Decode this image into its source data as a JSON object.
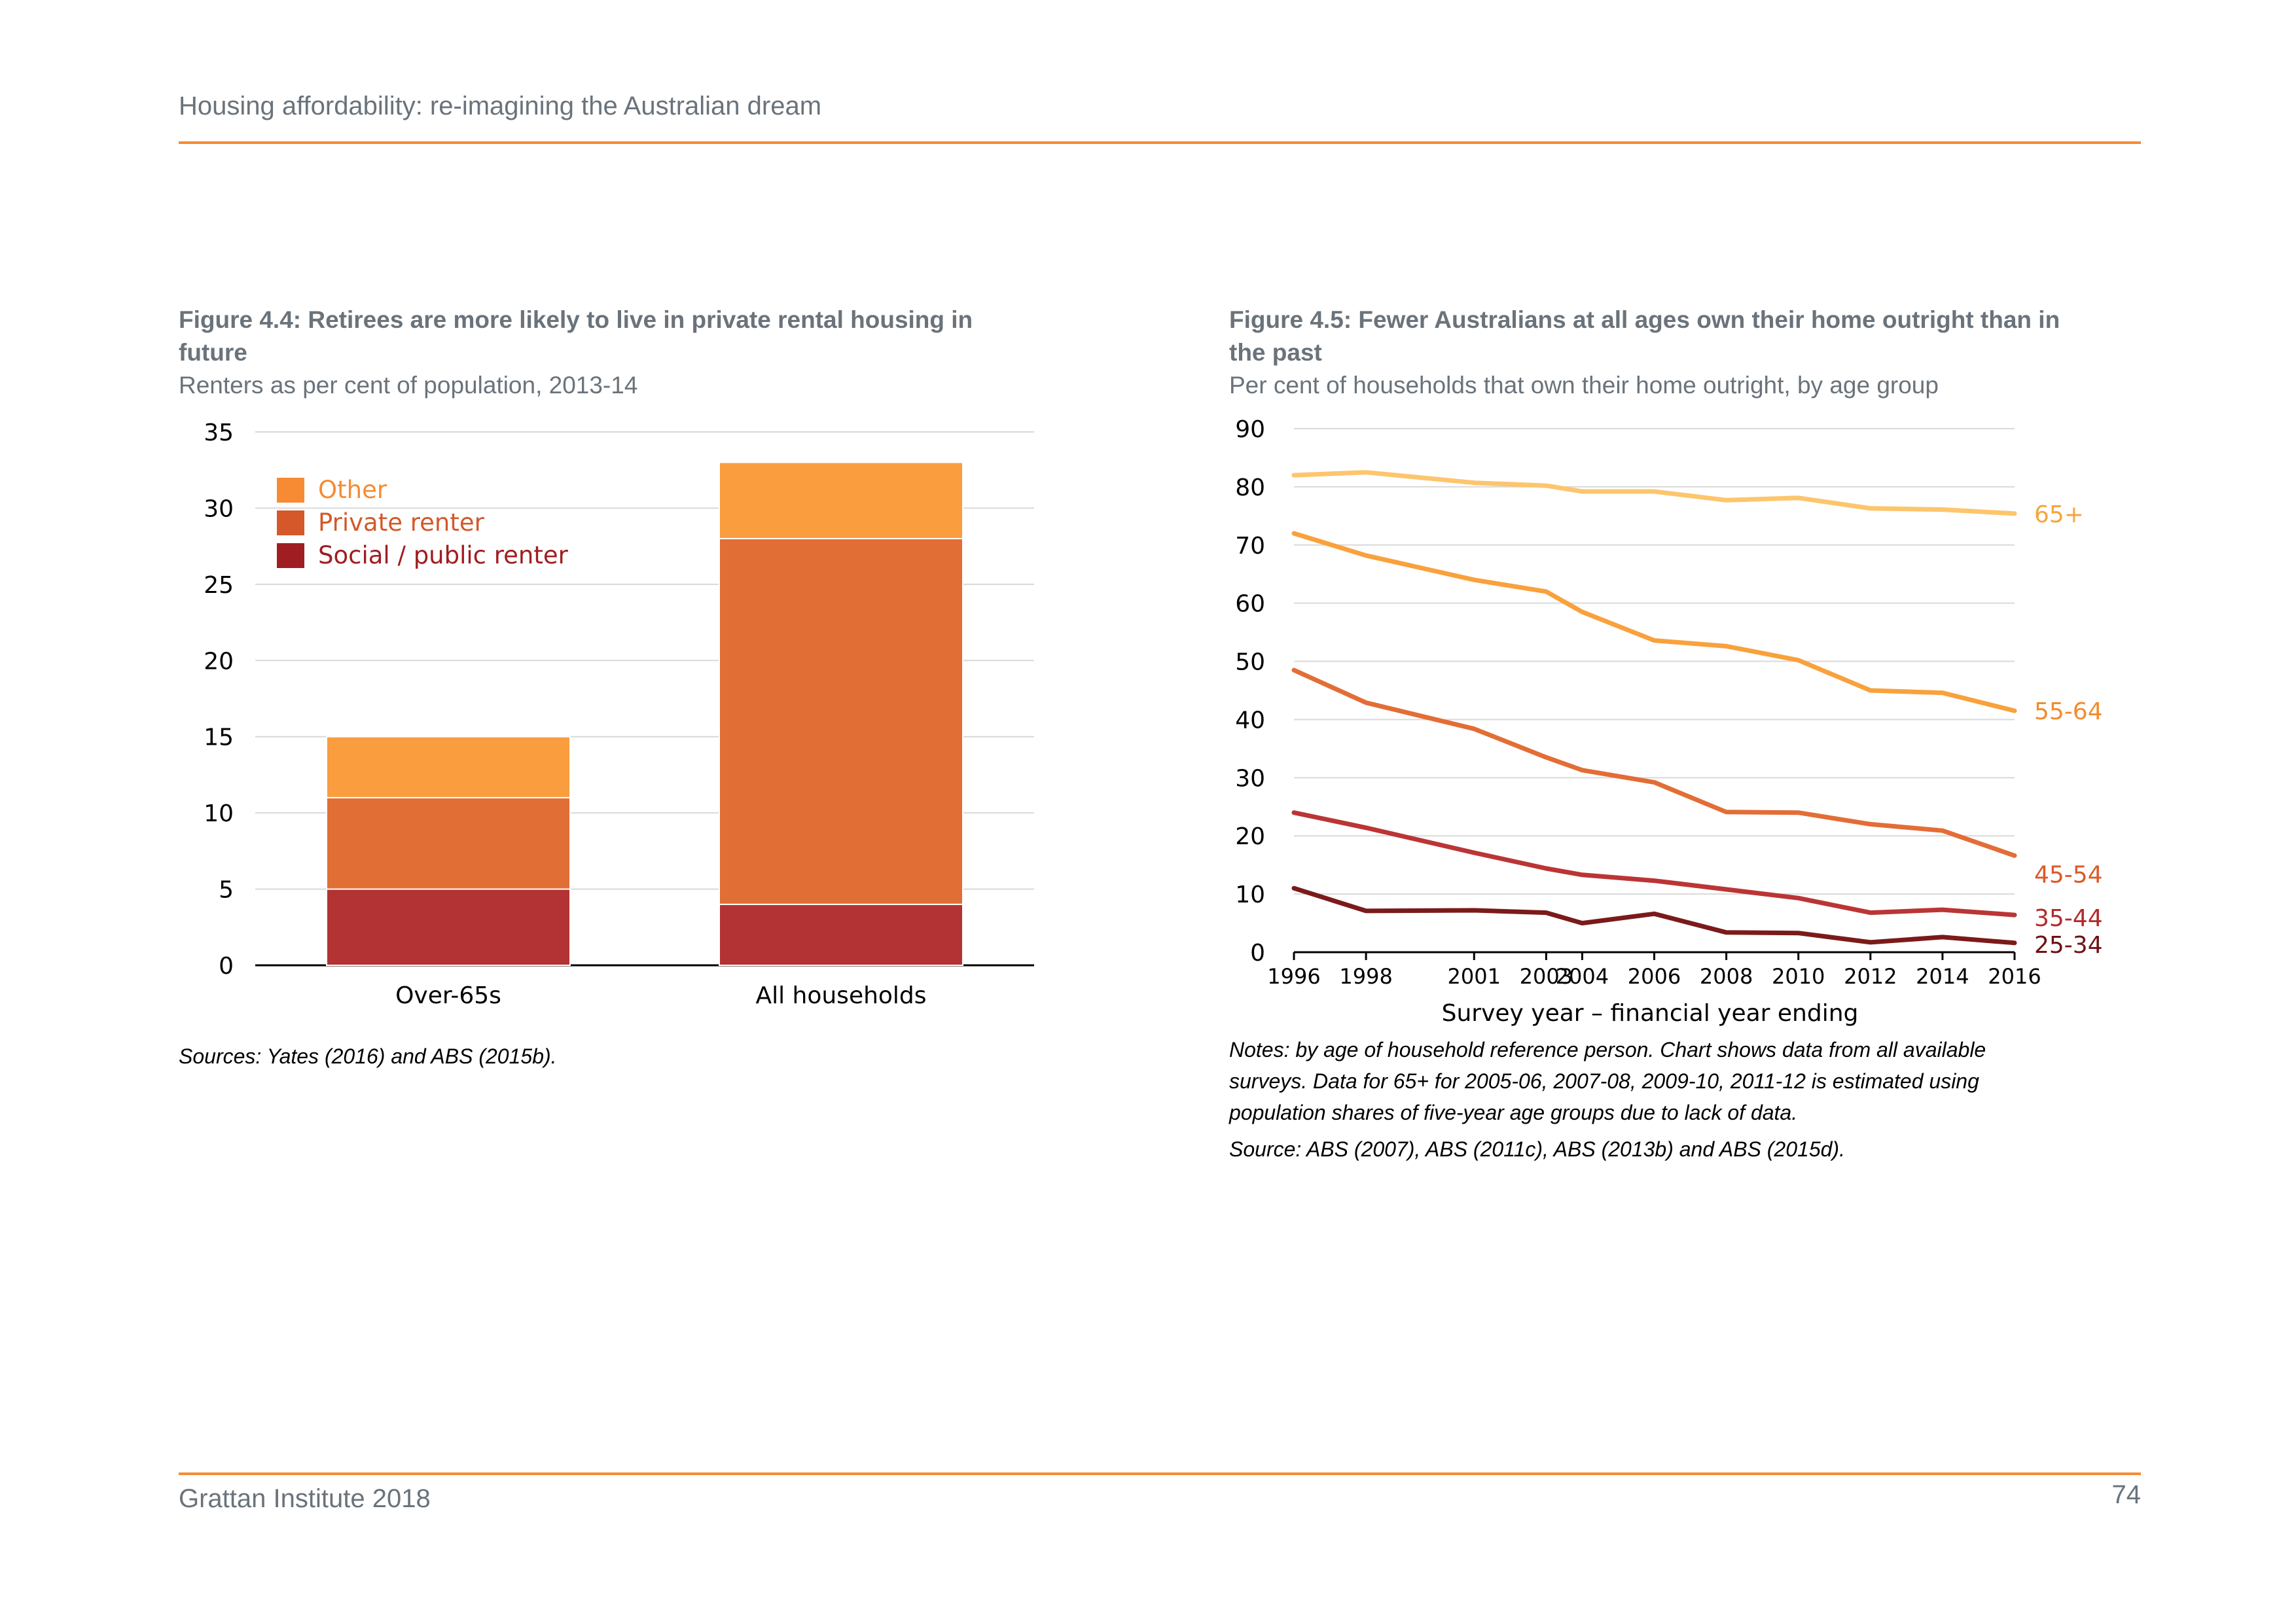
{
  "header": {
    "title": "Housing affordability: re-imagining the Australian dream"
  },
  "footer": {
    "org": "Grattan Institute 2018",
    "page": "74"
  },
  "figures": [
    {
      "title_line1": "Figure 4.4: Retirees are more likely to live in private rental housing in",
      "title_line2": "future",
      "subtitle": "Renters as per cent of population, 2013-14",
      "note": "Sources: Yates (2016) and ABS (2015b)."
    },
    {
      "title_line1": "Figure 4.5: Fewer Australians at all ages own their home outright than in",
      "title_line2": "the past",
      "subtitle": "Per cent of households that own their home outright, by age group",
      "note_line1": "Notes: by age of household reference person. Chart shows data from all available",
      "note_line2": "surveys. Data for 65+ for 2005-06, 2007-08, 2009-10, 2011-12 is estimated using",
      "note_line3": "population shares of five-year age groups due to lack of data.",
      "source": "Source: ABS (2007), ABS (2011c), ABS (2013b) and ABS (2015d)."
    }
  ],
  "chart_data": [
    {
      "type": "bar",
      "stacked": true,
      "categories": [
        "Over-65s",
        "All households"
      ],
      "series": [
        {
          "name": "Social / public renter",
          "color": "#b33233",
          "values": [
            5,
            4
          ]
        },
        {
          "name": "Private renter",
          "color": "#e06e35",
          "values": [
            6,
            24
          ]
        },
        {
          "name": "Other",
          "color": "#f99d3f",
          "values": [
            4,
            5
          ]
        }
      ],
      "legend_order": [
        "Other",
        "Private renter",
        "Social / public renter"
      ],
      "legend_colors": [
        "#f68b33",
        "#d4582a",
        "#a01d21"
      ],
      "yticks": [
        0,
        5,
        10,
        15,
        20,
        25,
        30,
        35
      ],
      "ylim": [
        0,
        35
      ],
      "grid": true,
      "legend_position": "top-left"
    },
    {
      "type": "line",
      "x": [
        1996,
        1998,
        2001,
        2003,
        2004,
        2006,
        2008,
        2010,
        2012,
        2014,
        2016
      ],
      "xticks": [
        "1996",
        "1998",
        "2001",
        "2003",
        "2004",
        "2006",
        "2008",
        "2010",
        "2012",
        "2014",
        "2016"
      ],
      "series": [
        {
          "name": "65+",
          "color": "#fdc56c",
          "label_color": "#f6a53c",
          "values": [
            82,
            82.5,
            80.7,
            80.2,
            79.2,
            79.2,
            77.7,
            78.1,
            76.3,
            76.1,
            75.4
          ]
        },
        {
          "name": "55-64",
          "color": "#f9a13c",
          "label_color": "#f28c2c",
          "values": [
            72,
            68.2,
            64,
            62,
            58.5,
            53.6,
            52.6,
            50.2,
            45,
            44.6,
            41.5
          ]
        },
        {
          "name": "45-54",
          "color": "#e36d36",
          "label_color": "#dc5a27",
          "values": [
            48.5,
            42.9,
            38.4,
            33.5,
            31.3,
            29.2,
            24.1,
            24,
            22,
            20.9,
            16.6
          ]
        },
        {
          "name": "35-44",
          "color": "#bb3535",
          "label_color": "#b32a2a",
          "values": [
            24,
            21.4,
            17.1,
            14.4,
            13.3,
            12.3,
            10.8,
            9.3,
            6.8,
            7.3,
            6.4
          ]
        },
        {
          "name": "25-34",
          "color": "#7b1a1a",
          "label_color": "#6e1212",
          "values": [
            11,
            7.1,
            7.2,
            6.8,
            5,
            6.6,
            3.4,
            3.3,
            1.7,
            2.6,
            1.6
          ]
        }
      ],
      "yticks": [
        0,
        10,
        20,
        30,
        40,
        50,
        60,
        70,
        80,
        90
      ],
      "ylim": [
        0,
        90
      ],
      "xlabel": "Survey year – financial year ending",
      "grid": true,
      "legend_position": "right (end-of-line labels)"
    }
  ]
}
